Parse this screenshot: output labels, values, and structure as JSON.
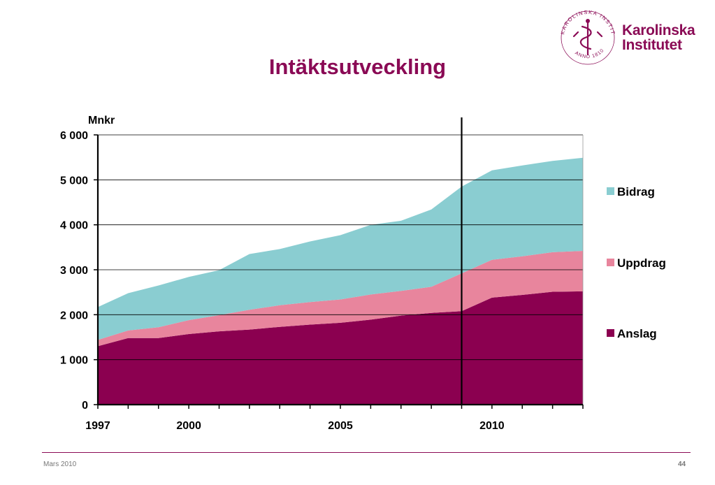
{
  "slide": {
    "title": "Intäktsutveckling",
    "footer_left": "Mars 2010",
    "page_number": "44"
  },
  "logo": {
    "line1": "Karolinska",
    "line2": "Institutet",
    "seal_text": "KAROLINSKA INSTITUTET ANNO 1810",
    "color": "#8a0a55"
  },
  "chart_data": {
    "type": "area",
    "stacked": true,
    "ylabel": "Mnkr",
    "ylim": [
      0,
      6000
    ],
    "yticks": [
      0,
      1000,
      2000,
      3000,
      4000,
      5000,
      6000
    ],
    "ytick_labels": [
      "0",
      "1 000",
      "2 000",
      "3 000",
      "4 000",
      "5 000",
      "6 000"
    ],
    "xlim": [
      1997,
      2013
    ],
    "x": [
      1997,
      1998,
      1999,
      2000,
      2001,
      2002,
      2003,
      2004,
      2005,
      2006,
      2007,
      2008,
      2009,
      2010,
      2011,
      2012,
      2013
    ],
    "xtick_labels": [
      {
        "x": 1997,
        "label": "1997"
      },
      {
        "x": 2000,
        "label": "2000"
      },
      {
        "x": 2005,
        "label": "2005"
      },
      {
        "x": 2010,
        "label": "2010"
      }
    ],
    "vertical_marker": 2009,
    "grid": "horizontal",
    "legend_position": "right",
    "series": [
      {
        "name": "Anslag",
        "color": "#8b0050",
        "values": [
          1300,
          1480,
          1480,
          1570,
          1630,
          1670,
          1730,
          1780,
          1820,
          1890,
          1980,
          2040,
          2080,
          2380,
          2440,
          2510,
          2520
        ]
      },
      {
        "name": "Uppdrag",
        "color": "#e8859d",
        "values": [
          140,
          170,
          240,
          310,
          360,
          440,
          480,
          500,
          520,
          560,
          550,
          580,
          840,
          840,
          860,
          880,
          900
        ]
      },
      {
        "name": "Bidrag",
        "color": "#8acdd1",
        "values": [
          730,
          830,
          930,
          960,
          1000,
          1240,
          1250,
          1350,
          1430,
          1550,
          1560,
          1720,
          1930,
          1990,
          2020,
          2030,
          2070
        ]
      }
    ]
  }
}
